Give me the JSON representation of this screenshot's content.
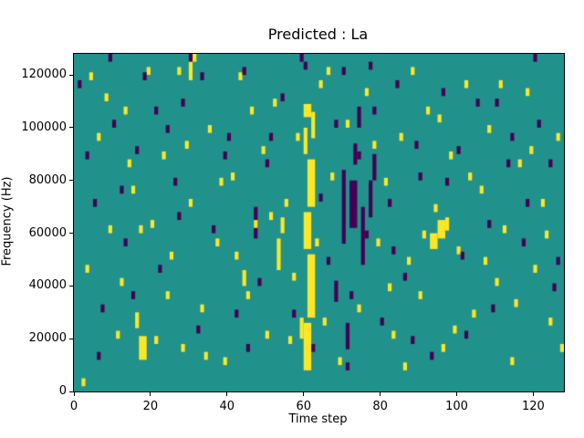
{
  "chart_data": {
    "type": "heatmap",
    "title": "Predicted : La",
    "xlabel": "Time step",
    "ylabel": "Frequency (Hz)",
    "x_range": [
      0,
      128
    ],
    "y_range": [
      0,
      128000
    ],
    "x_ticks": [
      0,
      20,
      40,
      60,
      80,
      100,
      120
    ],
    "y_ticks": [
      0,
      20000,
      40000,
      60000,
      80000,
      100000,
      120000
    ],
    "grid": false,
    "legend": "none",
    "freq_bin_hz": 1000,
    "colors": {
      "background": "#21918c",
      "high": "#fde725",
      "low": "#440154",
      "axis": "#000000"
    },
    "yellow_rects": [
      [
        60,
        8,
        2,
        18
      ],
      [
        59,
        20,
        1,
        8
      ],
      [
        61,
        28,
        2,
        24
      ],
      [
        60,
        54,
        2,
        14
      ],
      [
        61,
        70,
        2,
        18
      ],
      [
        60,
        90,
        1,
        10
      ],
      [
        62,
        96,
        1,
        10
      ],
      [
        60,
        104,
        2,
        5
      ],
      [
        17,
        12,
        2,
        9
      ],
      [
        16,
        24,
        1,
        6
      ],
      [
        53,
        46,
        1,
        12
      ],
      [
        54,
        60,
        1,
        6
      ],
      [
        93,
        54,
        2,
        6
      ],
      [
        95,
        58,
        2,
        7
      ],
      [
        97,
        61,
        1,
        5
      ],
      [
        30,
        118,
        1,
        8
      ],
      [
        44,
        40,
        1,
        6
      ]
    ],
    "purple_rects": [
      [
        70,
        56,
        1,
        28
      ],
      [
        72,
        62,
        2,
        18
      ],
      [
        75,
        48,
        1,
        22
      ],
      [
        77,
        66,
        1,
        14
      ],
      [
        78,
        80,
        1,
        10
      ],
      [
        73,
        86,
        1,
        8
      ],
      [
        68,
        34,
        1,
        8
      ],
      [
        71,
        16,
        1,
        10
      ],
      [
        74,
        100,
        1,
        8
      ],
      [
        47,
        58,
        1,
        12
      ]
    ],
    "yellow_cells": [
      [
        2,
        2
      ],
      [
        4,
        118
      ],
      [
        6,
        95
      ],
      [
        9,
        60
      ],
      [
        12,
        40
      ],
      [
        13,
        105
      ],
      [
        15,
        75
      ],
      [
        17,
        60
      ],
      [
        19,
        120
      ],
      [
        21,
        18
      ],
      [
        23,
        88
      ],
      [
        25,
        50
      ],
      [
        27,
        120
      ],
      [
        28,
        15
      ],
      [
        30,
        70
      ],
      [
        31,
        125
      ],
      [
        33,
        30
      ],
      [
        35,
        98
      ],
      [
        37,
        55
      ],
      [
        39,
        10
      ],
      [
        41,
        80
      ],
      [
        43,
        118
      ],
      [
        45,
        35
      ],
      [
        47,
        62
      ],
      [
        49,
        90
      ],
      [
        50,
        20
      ],
      [
        52,
        108
      ],
      [
        55,
        70
      ],
      [
        57,
        42
      ],
      [
        58,
        95
      ],
      [
        64,
        115
      ],
      [
        65,
        25
      ],
      [
        67,
        80
      ],
      [
        69,
        10
      ],
      [
        71,
        100
      ],
      [
        74,
        30
      ],
      [
        76,
        112
      ],
      [
        79,
        55
      ],
      [
        81,
        78
      ],
      [
        83,
        20
      ],
      [
        85,
        95
      ],
      [
        87,
        48
      ],
      [
        88,
        120
      ],
      [
        90,
        35
      ],
      [
        92,
        105
      ],
      [
        94,
        68
      ],
      [
        96,
        15
      ],
      [
        98,
        88
      ],
      [
        100,
        52
      ],
      [
        102,
        115
      ],
      [
        104,
        28
      ],
      [
        106,
        75
      ],
      [
        108,
        98
      ],
      [
        110,
        40
      ],
      [
        112,
        60
      ],
      [
        114,
        10
      ],
      [
        116,
        85
      ],
      [
        118,
        112
      ],
      [
        120,
        45
      ],
      [
        122,
        70
      ],
      [
        124,
        25
      ],
      [
        126,
        95
      ],
      [
        3,
        45
      ],
      [
        8,
        110
      ],
      [
        11,
        20
      ],
      [
        14,
        85
      ],
      [
        20,
        62
      ],
      [
        24,
        35
      ],
      [
        29,
        92
      ],
      [
        34,
        12
      ],
      [
        38,
        78
      ],
      [
        42,
        50
      ],
      [
        46,
        105
      ],
      [
        51,
        65
      ],
      [
        56,
        18
      ],
      [
        63,
        55
      ],
      [
        66,
        120
      ],
      [
        78,
        92
      ],
      [
        82,
        38
      ],
      [
        86,
        8
      ],
      [
        91,
        58
      ],
      [
        95,
        102
      ],
      [
        99,
        22
      ],
      [
        103,
        80
      ],
      [
        107,
        48
      ],
      [
        111,
        115
      ],
      [
        115,
        32
      ],
      [
        119,
        90
      ],
      [
        123,
        58
      ],
      [
        127,
        15
      ]
    ],
    "purple_cells": [
      [
        1,
        115
      ],
      [
        5,
        70
      ],
      [
        7,
        30
      ],
      [
        10,
        100
      ],
      [
        13,
        55
      ],
      [
        16,
        90
      ],
      [
        18,
        118
      ],
      [
        22,
        45
      ],
      [
        26,
        78
      ],
      [
        28,
        108
      ],
      [
        32,
        22
      ],
      [
        36,
        60
      ],
      [
        40,
        95
      ],
      [
        44,
        120
      ],
      [
        48,
        40
      ],
      [
        50,
        85
      ],
      [
        54,
        110
      ],
      [
        59,
        125
      ],
      [
        62,
        15
      ],
      [
        66,
        48
      ],
      [
        68,
        100
      ],
      [
        70,
        120
      ],
      [
        72,
        35
      ],
      [
        74,
        88
      ],
      [
        76,
        58
      ],
      [
        78,
        105
      ],
      [
        80,
        25
      ],
      [
        82,
        70
      ],
      [
        84,
        115
      ],
      [
        86,
        42
      ],
      [
        89,
        92
      ],
      [
        93,
        12
      ],
      [
        97,
        78
      ],
      [
        101,
        50
      ],
      [
        105,
        108
      ],
      [
        109,
        30
      ],
      [
        113,
        85
      ],
      [
        117,
        55
      ],
      [
        121,
        100
      ],
      [
        125,
        38
      ],
      [
        3,
        88
      ],
      [
        9,
        125
      ],
      [
        15,
        35
      ],
      [
        21,
        105
      ],
      [
        27,
        65
      ],
      [
        33,
        118
      ],
      [
        39,
        88
      ],
      [
        45,
        15
      ],
      [
        51,
        95
      ],
      [
        57,
        28
      ],
      [
        64,
        72
      ],
      [
        71,
        8
      ],
      [
        77,
        122
      ],
      [
        83,
        52
      ],
      [
        90,
        80
      ],
      [
        96,
        112
      ],
      [
        102,
        20
      ],
      [
        108,
        62
      ],
      [
        114,
        95
      ],
      [
        120,
        125
      ],
      [
        126,
        48
      ],
      [
        6,
        12
      ],
      [
        12,
        75
      ],
      [
        24,
        98
      ],
      [
        30,
        125
      ],
      [
        42,
        28
      ],
      [
        60,
        122
      ],
      [
        88,
        18
      ],
      [
        100,
        90
      ],
      [
        110,
        108
      ],
      [
        118,
        70
      ],
      [
        124,
        85
      ]
    ]
  }
}
